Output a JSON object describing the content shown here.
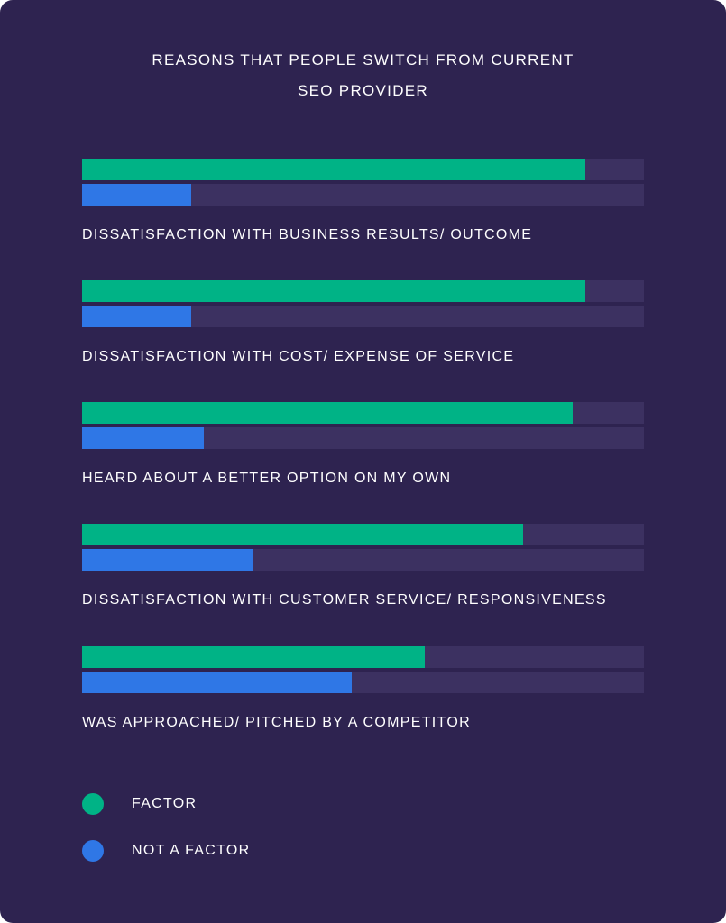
{
  "chart_data": {
    "type": "bar",
    "orientation": "horizontal",
    "title_lines": [
      "REASONS THAT PEOPLE SWITCH FROM CURRENT",
      "SEO PROVIDER"
    ],
    "categories": [
      "DISSATISFACTION WITH BUSINESS RESULTS/ OUTCOME",
      "DISSATISFACTION WITH COST/ EXPENSE OF SERVICE",
      "HEARD ABOUT A BETTER OPTION ON MY OWN",
      "DISSATISFACTION WITH CUSTOMER SERVICE/ RESPONSIVENESS",
      "WAS APPROACHED/ PITCHED BY A COMPETITOR"
    ],
    "series": [
      {
        "name": "FACTOR",
        "color": "#00b386",
        "values": [
          89.5,
          89.5,
          87.3,
          78.5,
          61
        ]
      },
      {
        "name": "NOT A FACTOR",
        "color": "#2f77e6",
        "values": [
          19.5,
          19.5,
          21.7,
          30.5,
          48
        ]
      }
    ],
    "xlim": [
      0,
      100
    ],
    "grid": false,
    "legend_position": "bottom-left"
  },
  "colors": {
    "background": "#2e2350",
    "track": "#3c3161",
    "text": "#ffffff"
  }
}
